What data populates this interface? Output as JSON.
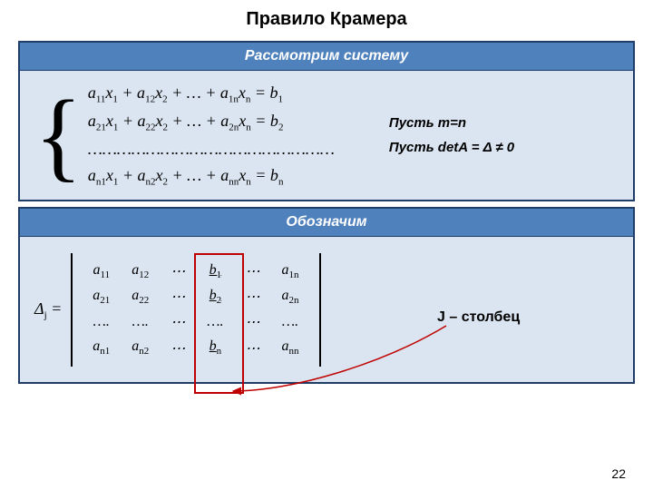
{
  "title": "Правило Крамера",
  "page_number": "22",
  "box1": {
    "header": "Рассмотрим систему",
    "equations": [
      {
        "terms": [
          "a",
          "11",
          "x",
          "1",
          " + a",
          "12",
          "x",
          "2",
          " + … + a",
          "1n",
          "x",
          "n",
          " = b",
          "1"
        ]
      },
      {
        "terms": [
          "a",
          "21",
          "x",
          "1",
          " + a",
          "22",
          "x",
          "2",
          " + … + a",
          "2n",
          "x",
          "n",
          " = b",
          "2"
        ]
      },
      {
        "dots": "……………………………………………"
      },
      {
        "terms": [
          "a",
          "n1",
          "x",
          "1",
          " + a",
          "n2",
          "x",
          "2",
          " + … + a",
          "nn",
          "x",
          "n",
          " = b",
          "n"
        ]
      }
    ],
    "conditions": [
      "Пусть m=n",
      "Пусть detA = Δ ≠ 0"
    ]
  },
  "box2": {
    "header": "Обозначим",
    "det_label": "Δ",
    "det_label_sub": "j",
    "eq_sign": " = ",
    "matrix": [
      [
        [
          "a",
          "11"
        ],
        [
          "a",
          "12"
        ],
        [
          "⋯"
        ],
        [
          "b",
          "1",
          "u"
        ],
        [
          "⋯"
        ],
        [
          "a",
          "1n"
        ]
      ],
      [
        [
          "a",
          "21"
        ],
        [
          "a",
          "22"
        ],
        [
          "⋯"
        ],
        [
          "b",
          "2",
          "u"
        ],
        [
          "⋯"
        ],
        [
          "a",
          "2n"
        ]
      ],
      [
        [
          "…."
        ],
        [
          "…."
        ],
        [
          "⋯"
        ],
        [
          "…."
        ],
        [
          "⋯"
        ],
        [
          "…."
        ]
      ],
      [
        [
          "a",
          "n1"
        ],
        [
          "a",
          "n2"
        ],
        [
          "⋯"
        ],
        [
          "b",
          "n",
          "u"
        ],
        [
          "⋯"
        ],
        [
          "a",
          "nn"
        ]
      ]
    ],
    "j_label": "J – столбец"
  },
  "style": {
    "header_bg": "#4f81bd",
    "header_fg": "#ffffff",
    "box_bg": "#dbe5f1",
    "box_border": "#1f3d66",
    "highlight_border": "#c00000",
    "arrow_color": "#c00000",
    "highlight_col_index": 3
  }
}
